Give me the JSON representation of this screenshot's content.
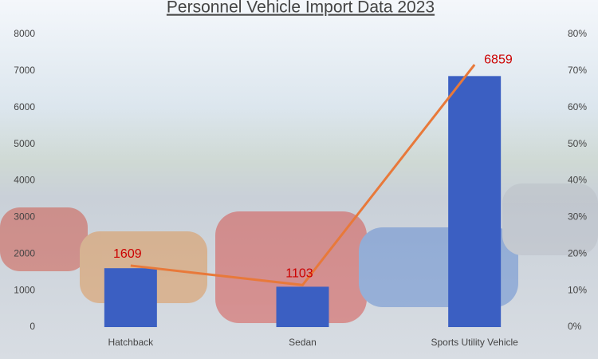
{
  "chart_data": {
    "type": "bar-line",
    "title": "Personnel Vehicle Import Data 2023",
    "categories": [
      "Hatchback",
      "Sedan",
      "Sports Utility Vehicle"
    ],
    "series": [
      {
        "type": "bar",
        "color": "#3b5fc2",
        "values": [
          1609,
          1103,
          6859
        ]
      },
      {
        "type": "line",
        "axis": "y2",
        "color": "#e8793a",
        "values": [
          16.8,
          11.5,
          71.7
        ]
      }
    ],
    "ylim": [
      0,
      8000
    ],
    "yticks": [
      0,
      1000,
      2000,
      3000,
      4000,
      5000,
      6000,
      7000,
      8000
    ],
    "y2lim": [
      0,
      80
    ],
    "y2ticks": [
      {
        "value": 0,
        "label": "0%"
      },
      {
        "value": 10,
        "label": "10%"
      },
      {
        "value": 20,
        "label": "20%"
      },
      {
        "value": 30,
        "label": "30%"
      },
      {
        "value": 40,
        "label": "40%"
      },
      {
        "value": 50,
        "label": "50%"
      },
      {
        "value": 60,
        "label": "60%"
      },
      {
        "value": 70,
        "label": "70%"
      },
      {
        "value": 80,
        "label": "80%"
      }
    ],
    "grid": false
  }
}
